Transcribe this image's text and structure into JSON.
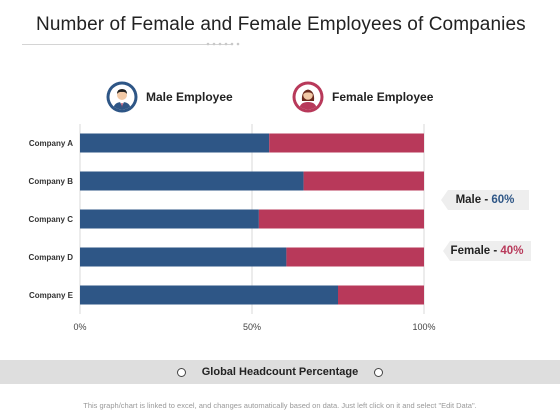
{
  "title": "Number of Female and Female Employees of Companies",
  "legend": {
    "male": {
      "label": "Male Employee",
      "icon": "male-avatar-icon"
    },
    "female": {
      "label": "Female Employee",
      "icon": "female-avatar-icon"
    }
  },
  "callouts": {
    "male": {
      "label": "Male - ",
      "value": "60%"
    },
    "female": {
      "label": "Female - ",
      "value": "40%"
    }
  },
  "footer": {
    "label": "Global Headcount Percentage"
  },
  "note": "This graph/chart is linked to excel, and changes automatically based on data. Just left click on it and select \"Edit Data\".",
  "colors": {
    "male": "#2e5686",
    "female": "#b8395a",
    "grid": "#d9d9d9"
  },
  "chart_data": {
    "type": "bar",
    "orientation": "horizontal",
    "stacked": true,
    "title": "Number of Female and Female Employees of Companies",
    "categories": [
      "Company A",
      "Company B",
      "Company C",
      "Company D",
      "Company E"
    ],
    "series": [
      {
        "name": "Male Employee",
        "values": [
          55,
          65,
          52,
          60,
          75
        ]
      },
      {
        "name": "Female Employee",
        "values": [
          45,
          35,
          48,
          40,
          25
        ]
      }
    ],
    "xlim": [
      0,
      100
    ],
    "x_ticks": [
      "0%",
      "50%",
      "100%"
    ],
    "xlabel": "Global Headcount Percentage",
    "grid": true,
    "legend_position": "top"
  }
}
